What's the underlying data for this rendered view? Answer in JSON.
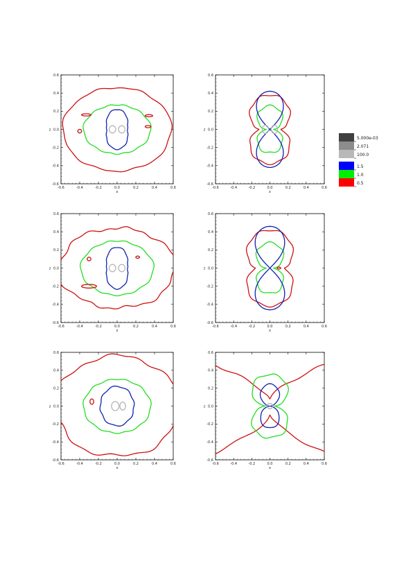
{
  "chart_data": {
    "type": "contour",
    "panels": [
      {
        "id": "top-left",
        "xlabel": "x",
        "ylabel": "z",
        "xlim": [
          -0.6,
          0.6
        ],
        "ylim": [
          -0.6,
          0.6
        ],
        "xticks": [
          "-0.6",
          "-0.4",
          "-0.2",
          "0.0",
          "0.2",
          "0.4",
          "0.6"
        ],
        "yticks": [
          "-0.6",
          "-0.4",
          "-0.2",
          "0.0",
          "0.2",
          "0.4",
          "0.6"
        ]
      },
      {
        "id": "top-right",
        "xlabel": "x",
        "ylabel": "z",
        "xlim": [
          -0.6,
          0.6
        ],
        "ylim": [
          -0.6,
          0.6
        ],
        "xticks": [
          "-0.6",
          "-0.4",
          "-0.2",
          "0.0",
          "0.2",
          "0.4",
          "0.6"
        ],
        "yticks": [
          "-0.6",
          "-0.4",
          "-0.2",
          "0.0",
          "0.2",
          "0.4",
          "0.6"
        ]
      },
      {
        "id": "middle-left",
        "xlabel": "x",
        "ylabel": "z",
        "xlim": [
          -0.6,
          0.6
        ],
        "ylim": [
          -0.6,
          0.6
        ],
        "xticks": [
          "-0.6",
          "-0.4",
          "-0.2",
          "0.0",
          "0.2",
          "0.4",
          "0.6"
        ],
        "yticks": [
          "-0.6",
          "-0.4",
          "-0.2",
          "0.0",
          "0.2",
          "0.4",
          "0.6"
        ]
      },
      {
        "id": "middle-right",
        "xlabel": "x",
        "ylabel": "z",
        "xlim": [
          -0.6,
          0.6
        ],
        "ylim": [
          -0.6,
          0.6
        ],
        "xticks": [
          "-0.6",
          "-0.4",
          "-0.2",
          "0.0",
          "0.2",
          "0.4",
          "0.6"
        ],
        "yticks": [
          "-0.6",
          "-0.4",
          "-0.2",
          "0.0",
          "0.2",
          "0.4",
          "0.6"
        ]
      },
      {
        "id": "bottom-left",
        "xlabel": "x",
        "ylabel": "z",
        "xlim": [
          -0.6,
          0.6
        ],
        "ylim": [
          -0.6,
          0.6
        ],
        "xticks": [
          "-0.6",
          "-0.4",
          "-0.2",
          "0.0",
          "0.2",
          "0.4",
          "0.6"
        ],
        "yticks": [
          "-0.6",
          "-0.4",
          "-0.2",
          "0.0",
          "0.2",
          "0.4",
          "0.6"
        ]
      },
      {
        "id": "bottom-right",
        "xlabel": "x",
        "ylabel": "z",
        "xlim": [
          -0.6,
          0.6
        ],
        "ylim": [
          -0.6,
          0.6
        ],
        "xticks": [
          "-0.6",
          "-0.4",
          "-0.2",
          "0.0",
          "0.2",
          "0.4",
          "0.6"
        ],
        "yticks": [
          "-0.6",
          "-0.4",
          "-0.2",
          "0.0",
          "0.2",
          "0.4",
          "0.6"
        ]
      }
    ],
    "contour_levels": [
      {
        "label": "5.000e-03",
        "color": "#404040"
      },
      {
        "label": "2.071",
        "color": "#8c8c8c"
      },
      {
        "label": "100.0",
        "color": "#b8b8b8"
      },
      {
        "label": "1.5",
        "color": "#0000ff"
      },
      {
        "label": "1.0",
        "color": "#00ee00"
      },
      {
        "label": "0.5",
        "color": "#ff0000"
      }
    ],
    "contour_line_colors": {
      "gray": "#b4b4b4",
      "blue": "#1020b0",
      "green": "#22dd22",
      "red": "#cc1010"
    },
    "legend_position": "right"
  }
}
